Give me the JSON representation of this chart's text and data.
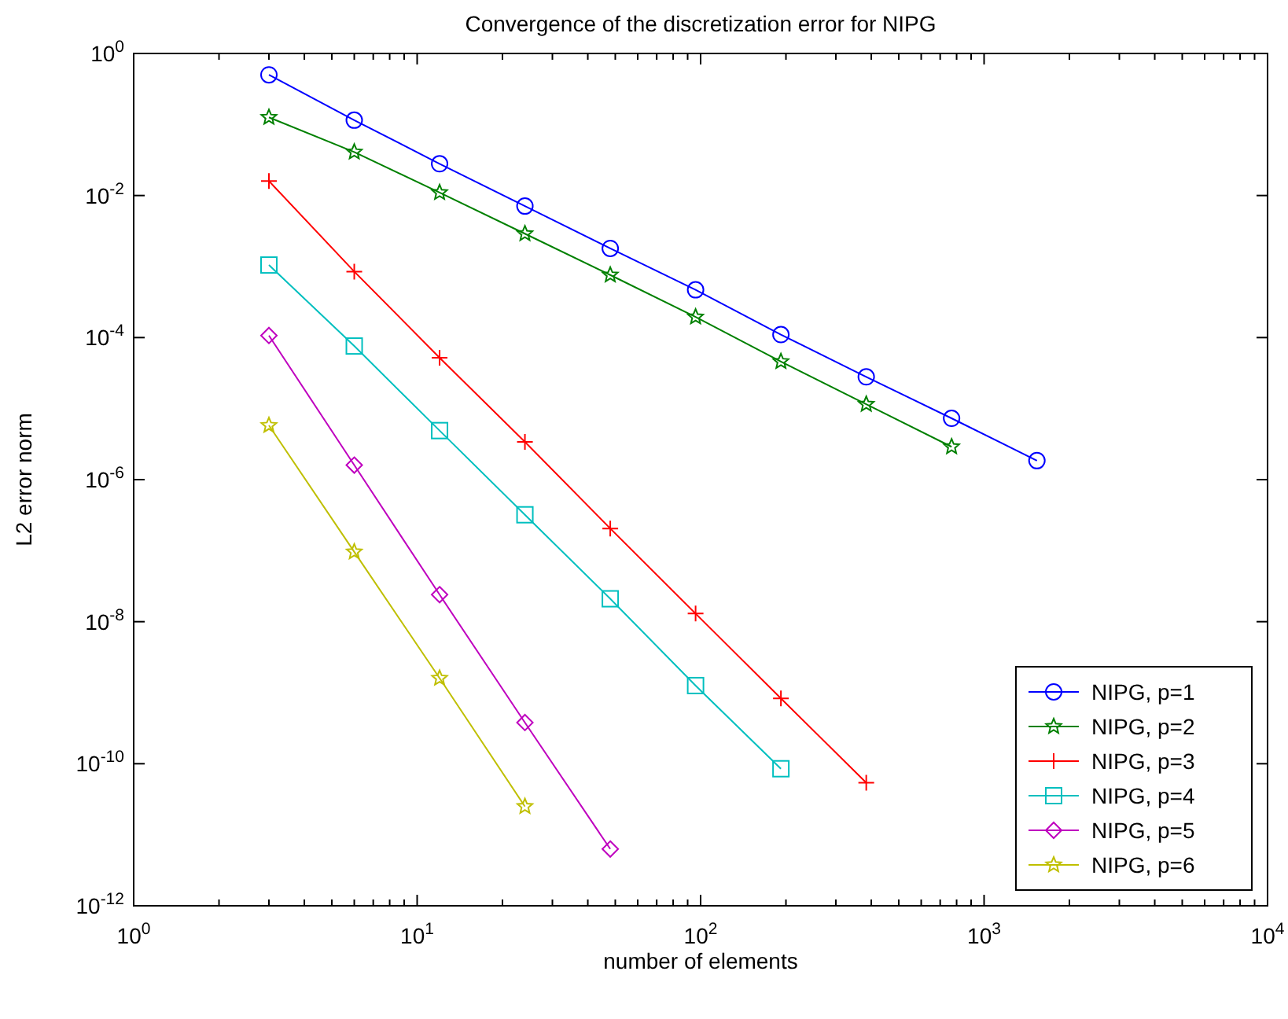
{
  "chart_data": {
    "type": "line",
    "title": "Convergence of the discretization error for NIPG",
    "xlabel": "number of elements",
    "ylabel": "L2 error norm",
    "log": "xy",
    "grid": false,
    "legend": "bottom right",
    "line_style": "solid",
    "xlim": [
      1,
      10000
    ],
    "ylim": [
      1e-12,
      1
    ],
    "xticks": [
      {
        "value": 1,
        "label": "10$^{0}$"
      },
      {
        "value": 10,
        "label": "10$^{1}$"
      },
      {
        "value": 100,
        "label": "10$^{2}$"
      },
      {
        "value": 1000,
        "label": "10$^{3}$"
      },
      {
        "value": 10000,
        "label": "10$^{4}$"
      },
      {
        "value": 2,
        "label": null
      },
      {
        "value": 3,
        "label": null
      },
      {
        "value": 4,
        "label": null
      },
      {
        "value": 5,
        "label": null
      },
      {
        "value": 6,
        "label": null
      },
      {
        "value": 7,
        "label": null
      },
      {
        "value": 8,
        "label": null
      },
      {
        "value": 9,
        "label": null
      },
      {
        "value": 20,
        "label": null
      },
      {
        "value": 30,
        "label": null
      },
      {
        "value": 40,
        "label": null
      },
      {
        "value": 50,
        "label": null
      },
      {
        "value": 60,
        "label": null
      },
      {
        "value": 70,
        "label": null
      },
      {
        "value": 80,
        "label": null
      },
      {
        "value": 90,
        "label": null
      },
      {
        "value": 200,
        "label": null
      },
      {
        "value": 300,
        "label": null
      },
      {
        "value": 400,
        "label": null
      },
      {
        "value": 500,
        "label": null
      },
      {
        "value": 600,
        "label": null
      },
      {
        "value": 700,
        "label": null
      },
      {
        "value": 800,
        "label": null
      },
      {
        "value": 900,
        "label": null
      },
      {
        "value": 2000,
        "label": null
      },
      {
        "value": 3000,
        "label": null
      },
      {
        "value": 4000,
        "label": null
      },
      {
        "value": 5000,
        "label": null
      },
      {
        "value": 6000,
        "label": null
      },
      {
        "value": 7000,
        "label": null
      },
      {
        "value": 8000,
        "label": null
      },
      {
        "value": 9000,
        "label": null
      }
    ],
    "yticks": [
      {
        "value": 1e-12,
        "label": "10$^{-12}$"
      },
      {
        "value": 1e-10,
        "label": "10$^{-10}$"
      },
      {
        "value": 1e-08,
        "label": "10$^{-8}$"
      },
      {
        "value": 1e-06,
        "label": "10$^{-6}$"
      },
      {
        "value": 0.0001,
        "label": "10$^{-4}$"
      },
      {
        "value": 0.01,
        "label": "10$^{-2}$"
      },
      {
        "value": 1,
        "label": "10$^{0}$"
      }
    ],
    "series": [
      {
        "name": "NIPG, p=1",
        "color": "#0000ff",
        "marker": "circle",
        "x": [
          3,
          6,
          12,
          24,
          48,
          96,
          192,
          384,
          768,
          1536
        ],
        "values": [
          0.5,
          0.115,
          0.028,
          0.0071,
          0.0018,
          0.00047,
          0.00011,
          2.8e-05,
          7.3e-06,
          1.85e-06
        ]
      },
      {
        "name": "NIPG, p=2",
        "color": "#008000",
        "marker": "star",
        "x": [
          3,
          6,
          12,
          24,
          48,
          96,
          192,
          384,
          768
        ],
        "values": [
          0.126,
          0.041,
          0.011,
          0.0029,
          0.00076,
          0.000195,
          4.6e-05,
          1.15e-05,
          2.9e-06
        ]
      },
      {
        "name": "NIPG, p=3",
        "color": "#ff0000",
        "marker": "cross",
        "x": [
          3,
          6,
          12,
          24,
          48,
          96,
          192,
          384
        ],
        "values": [
          0.016,
          0.00085,
          5.2e-05,
          3.4e-06,
          2.05e-07,
          1.3e-08,
          8.3e-10,
          5.4e-11
        ]
      },
      {
        "name": "NIPG, p=4",
        "color": "#00bfbf",
        "marker": "square",
        "x": [
          3,
          6,
          12,
          24,
          48,
          96,
          192
        ],
        "values": [
          0.00105,
          7.6e-05,
          4.9e-06,
          3.2e-07,
          2.1e-08,
          1.26e-09,
          8.5e-11
        ]
      },
      {
        "name": "NIPG, p=5",
        "color": "#bf00bf",
        "marker": "diamond",
        "x": [
          3,
          6,
          12,
          24,
          48
        ],
        "values": [
          0.000107,
          1.6e-06,
          2.4e-08,
          3.8e-10,
          6.3e-12
        ]
      },
      {
        "name": "NIPG, p=6",
        "color": "#bfbf00",
        "marker": "star",
        "x": [
          3,
          6,
          12,
          24
        ],
        "values": [
          5.8e-06,
          9.6e-08,
          1.6e-09,
          2.5e-11
        ]
      }
    ]
  }
}
